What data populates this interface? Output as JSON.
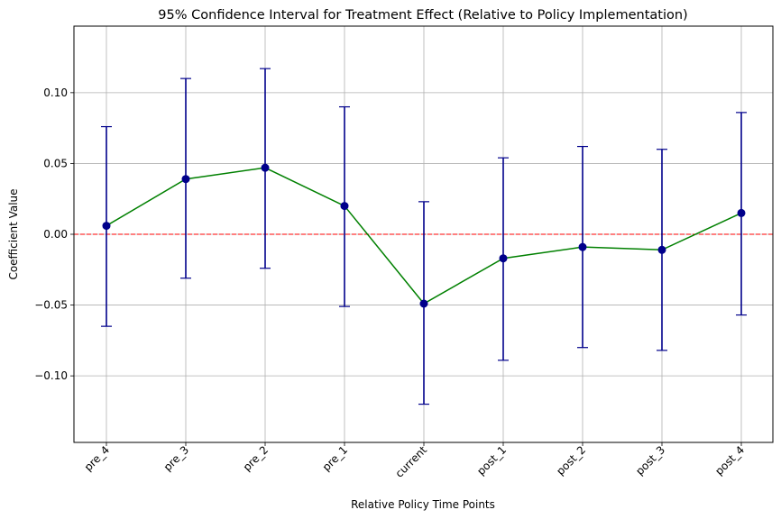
{
  "chart_data": {
    "type": "line",
    "title": "95% Confidence Interval for Treatment Effect (Relative to Policy Implementation)",
    "xlabel": "Relative Policy Time Points",
    "ylabel": "Coefficient Value",
    "categories": [
      "pre_4",
      "pre_3",
      "pre_2",
      "pre_1",
      "current",
      "post_1",
      "post_2",
      "post_3",
      "post_4"
    ],
    "series": [
      {
        "values": [
          0.006,
          0.039,
          0.047,
          0.02,
          -0.049,
          -0.017,
          -0.009,
          -0.011,
          0.015
        ],
        "ci_lower": [
          -0.065,
          -0.031,
          -0.024,
          -0.051,
          -0.12,
          -0.089,
          -0.08,
          -0.082,
          -0.057
        ],
        "ci_upper": [
          0.076,
          0.11,
          0.117,
          0.09,
          0.023,
          0.054,
          0.062,
          0.06,
          0.086
        ],
        "line_color": "#008000",
        "marker_color": "#00008b",
        "errorbar_color": "#00008b"
      }
    ],
    "reference_line": {
      "y": 0.0,
      "color": "#ff0000",
      "style": "dashed"
    },
    "ylim": [
      -0.147,
      0.147
    ],
    "yticks": [
      -0.1,
      -0.05,
      0.0,
      0.05,
      0.1
    ],
    "ytick_labels": [
      "−0.10",
      "−0.05",
      "0.00",
      "0.05",
      "0.10"
    ],
    "grid": true,
    "grid_color": "#b0b0b0",
    "xtick_rotation": 45
  }
}
